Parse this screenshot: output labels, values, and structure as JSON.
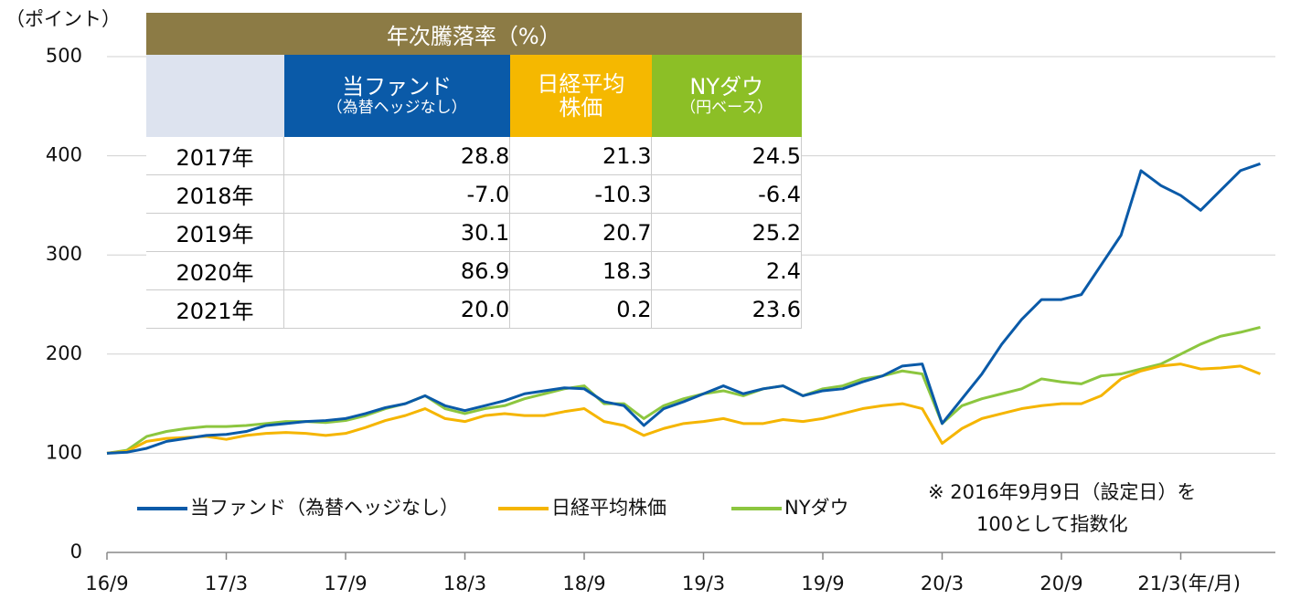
{
  "chart_data": {
    "type": "line",
    "y_unit": "（ポイント）",
    "x_unit": "(年/月)",
    "x": [
      "16/9",
      "16/10",
      "16/11",
      "16/12",
      "17/1",
      "17/2",
      "17/3",
      "17/4",
      "17/5",
      "17/6",
      "17/7",
      "17/8",
      "17/9",
      "17/10",
      "17/11",
      "17/12",
      "18/1",
      "18/2",
      "18/3",
      "18/4",
      "18/5",
      "18/6",
      "18/7",
      "18/8",
      "18/9",
      "18/10",
      "18/11",
      "18/12",
      "19/1",
      "19/2",
      "19/3",
      "19/4",
      "19/5",
      "19/6",
      "19/7",
      "19/8",
      "19/9",
      "19/10",
      "19/11",
      "19/12",
      "20/1",
      "20/2",
      "20/3",
      "20/4",
      "20/5",
      "20/6",
      "20/7",
      "20/8",
      "20/9",
      "20/10",
      "20/11",
      "20/12",
      "21/1",
      "21/2",
      "21/3",
      "21/4",
      "21/5",
      "21/6",
      "21/7"
    ],
    "series": [
      {
        "name": "当ファンド（為替ヘッジなし）",
        "color": "#0a5aa8",
        "values": [
          100,
          101,
          105,
          112,
          115,
          118,
          119,
          122,
          128,
          130,
          132,
          133,
          135,
          140,
          146,
          150,
          158,
          148,
          143,
          148,
          153,
          160,
          163,
          166,
          165,
          152,
          148,
          128,
          145,
          152,
          160,
          168,
          160,
          165,
          168,
          158,
          163,
          165,
          172,
          178,
          188,
          190,
          130,
          155,
          180,
          210,
          235,
          255,
          255,
          260,
          290,
          320,
          385,
          370,
          360,
          345,
          365,
          385,
          392
        ]
      },
      {
        "name": "日経平均株価",
        "color": "#f5b500",
        "values": [
          100,
          102,
          112,
          115,
          116,
          117,
          114,
          118,
          120,
          121,
          120,
          118,
          120,
          126,
          133,
          138,
          145,
          135,
          132,
          138,
          140,
          138,
          138,
          142,
          145,
          132,
          128,
          118,
          125,
          130,
          132,
          135,
          130,
          130,
          134,
          132,
          135,
          140,
          145,
          148,
          150,
          145,
          110,
          125,
          135,
          140,
          145,
          148,
          150,
          150,
          158,
          175,
          183,
          188,
          190,
          185,
          186,
          188,
          180
        ]
      },
      {
        "name": "NYダウ",
        "color": "#8cc63f",
        "values": [
          100,
          103,
          117,
          122,
          125,
          127,
          127,
          128,
          130,
          132,
          132,
          131,
          133,
          138,
          145,
          150,
          158,
          145,
          140,
          145,
          148,
          155,
          160,
          165,
          168,
          150,
          150,
          135,
          148,
          155,
          160,
          163,
          158,
          165,
          168,
          158,
          165,
          168,
          175,
          178,
          183,
          180,
          130,
          148,
          155,
          160,
          165,
          175,
          172,
          170,
          178,
          180,
          185,
          190,
          200,
          210,
          218,
          222,
          227
        ]
      }
    ],
    "xticks": [
      "16/9",
      "17/3",
      "17/9",
      "18/3",
      "18/9",
      "19/3",
      "19/9",
      "20/3",
      "20/9",
      "21/3"
    ],
    "ylim": [
      0,
      500
    ],
    "yticks": [
      0,
      100,
      200,
      300,
      400,
      500
    ],
    "grid": true,
    "note": [
      "※ 2016年9月9日（設定日）を",
      "100として指数化"
    ]
  },
  "table": {
    "title": "年次騰落率（%）",
    "columns": [
      [
        "当ファンド",
        "（為替ヘッジなし）"
      ],
      [
        "日経平均",
        "株価"
      ],
      [
        "NYダウ",
        "（円ベース）"
      ]
    ],
    "rows": [
      [
        "2017年",
        "28.8",
        "21.3",
        "24.5"
      ],
      [
        "2018年",
        "-7.0",
        "-10.3",
        "-6.4"
      ],
      [
        "2019年",
        "30.1",
        "20.7",
        "25.2"
      ],
      [
        "2020年",
        "86.9",
        "18.3",
        "2.4"
      ],
      [
        "2021年",
        "20.0",
        "0.2",
        "23.6"
      ]
    ]
  }
}
